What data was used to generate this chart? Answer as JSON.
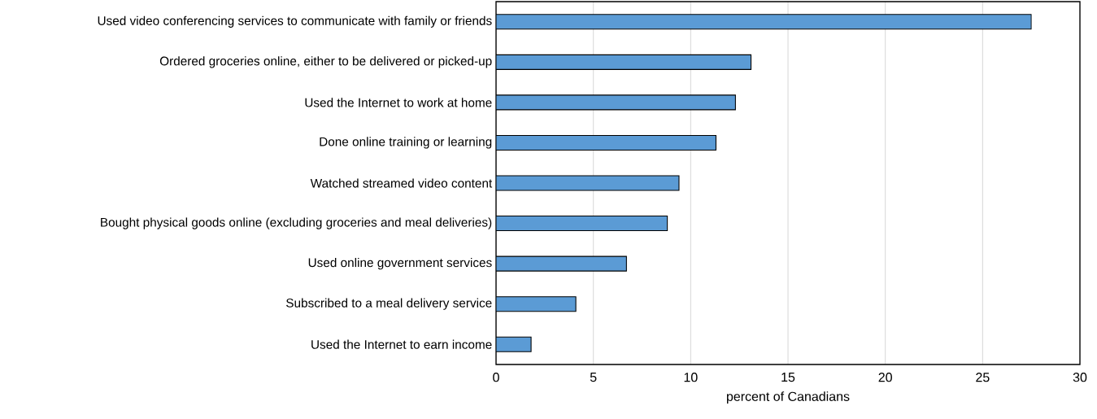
{
  "chart_data": {
    "type": "bar",
    "orientation": "horizontal",
    "xlabel": "percent of Canadians",
    "categories": [
      "Used video conferencing services to communicate with family or friends",
      "Ordered groceries online, either to be delivered or picked-up",
      "Used the Internet to work at home",
      "Done online training or learning",
      "Watched streamed video content",
      "Bought physical goods online (excluding groceries and meal deliveries)",
      "Used online government services",
      "Subscribed to a meal delivery service",
      "Used the Internet to earn income"
    ],
    "values": [
      27.5,
      13.1,
      12.3,
      11.3,
      9.4,
      8.8,
      6.7,
      4.1,
      1.8
    ],
    "color": "#5b9bd5",
    "xlim": [
      0,
      30
    ],
    "xticks": [
      0,
      5,
      10,
      15,
      20,
      25,
      30
    ],
    "grid": "x"
  }
}
